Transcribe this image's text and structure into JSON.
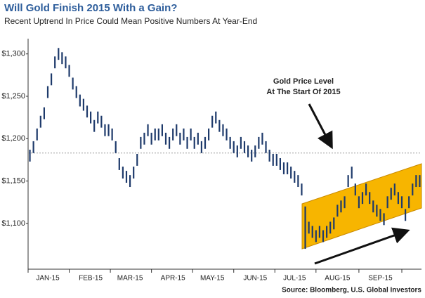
{
  "chart_data": {
    "type": "range-bar",
    "title": "Will Gold Finish 2015 With a Gain?",
    "subtitle": "Recent Uptrend In Price Could Mean Positive Numbers At Year-End",
    "annotation": [
      "Gold Price Level",
      "At The Start Of 2015"
    ],
    "source": "Source: Bloomberg, U.S. Global Investors",
    "reference_line": 1183,
    "color": "#1e3a6b",
    "ylim": [
      1046,
      1318
    ],
    "yticks": [
      {
        "value": 1100,
        "label": "$1,100"
      },
      {
        "value": 1150,
        "label": "$1,150"
      },
      {
        "value": 1200,
        "label": "$1,200"
      },
      {
        "value": 1250,
        "label": "$1,250"
      },
      {
        "value": 1300,
        "label": "$1,300"
      }
    ],
    "categories": [
      null,
      null,
      null,
      null,
      null,
      "JAN-15",
      null,
      null,
      null,
      null,
      null,
      null,
      null,
      null,
      null,
      null,
      null,
      "FEB-15",
      null,
      null,
      null,
      null,
      null,
      null,
      null,
      null,
      null,
      null,
      "MAR-15",
      null,
      null,
      null,
      null,
      null,
      null,
      null,
      null,
      null,
      null,
      null,
      "APR-15",
      null,
      null,
      null,
      null,
      null,
      null,
      null,
      null,
      null,
      null,
      "MAY-15",
      null,
      null,
      null,
      null,
      null,
      null,
      null,
      null,
      null,
      null,
      null,
      "JUN-15",
      null,
      null,
      null,
      null,
      null,
      null,
      null,
      null,
      null,
      null,
      "JUL-15",
      null,
      null,
      null,
      null,
      null,
      null,
      null,
      null,
      null,
      null,
      null,
      "AUG-15",
      null,
      null,
      null,
      null,
      null,
      null,
      null,
      null,
      null,
      null,
      null,
      "SEP-15",
      null,
      null,
      null,
      null,
      null,
      null,
      null,
      null,
      null,
      null,
      null
    ],
    "high": [
      1187,
      1197,
      1212,
      1227,
      1237,
      1262,
      1277,
      1297,
      1307,
      1302,
      1297,
      1287,
      1272,
      1262,
      1252,
      1247,
      1239,
      1232,
      1222,
      1232,
      1227,
      1217,
      1217,
      1212,
      1197,
      1177,
      1167,
      1162,
      1157,
      1167,
      1182,
      1202,
      1207,
      1217,
      1207,
      1212,
      1212,
      1217,
      1207,
      1202,
      1212,
      1217,
      1207,
      1212,
      1202,
      1212,
      1202,
      1207,
      1197,
      1202,
      1212,
      1227,
      1232,
      1222,
      1217,
      1212,
      1202,
      1197,
      1192,
      1202,
      1197,
      1192,
      1187,
      1192,
      1202,
      1207,
      1197,
      1187,
      1182,
      1182,
      1177,
      1172,
      1172,
      1167,
      1162,
      1157,
      1147,
      1120,
      1102,
      1097,
      1092,
      1097,
      1092,
      1097,
      1102,
      1107,
      1122,
      1127,
      1132,
      1157,
      1167,
      1147,
      1132,
      1137,
      1147,
      1137,
      1127,
      1122,
      1117,
      1112,
      1132,
      1142,
      1147,
      1137,
      1132,
      1117,
      1132,
      1147,
      1157,
      1157
    ],
    "low": [
      1173,
      1183,
      1198,
      1213,
      1223,
      1248,
      1263,
      1283,
      1293,
      1288,
      1283,
      1273,
      1258,
      1248,
      1238,
      1233,
      1225,
      1218,
      1208,
      1218,
      1213,
      1203,
      1203,
      1198,
      1183,
      1163,
      1153,
      1148,
      1143,
      1153,
      1168,
      1188,
      1193,
      1203,
      1193,
      1198,
      1198,
      1203,
      1193,
      1188,
      1198,
      1203,
      1193,
      1198,
      1188,
      1198,
      1188,
      1193,
      1183,
      1188,
      1198,
      1213,
      1218,
      1208,
      1203,
      1198,
      1188,
      1183,
      1178,
      1188,
      1183,
      1178,
      1173,
      1178,
      1188,
      1193,
      1183,
      1173,
      1168,
      1168,
      1163,
      1158,
      1158,
      1153,
      1148,
      1143,
      1133,
      1070,
      1088,
      1083,
      1078,
      1083,
      1078,
      1083,
      1088,
      1093,
      1108,
      1113,
      1118,
      1143,
      1153,
      1133,
      1118,
      1123,
      1133,
      1123,
      1113,
      1108,
      1103,
      1098,
      1118,
      1128,
      1133,
      1123,
      1118,
      1103,
      1118,
      1133,
      1143,
      1143
    ]
  }
}
